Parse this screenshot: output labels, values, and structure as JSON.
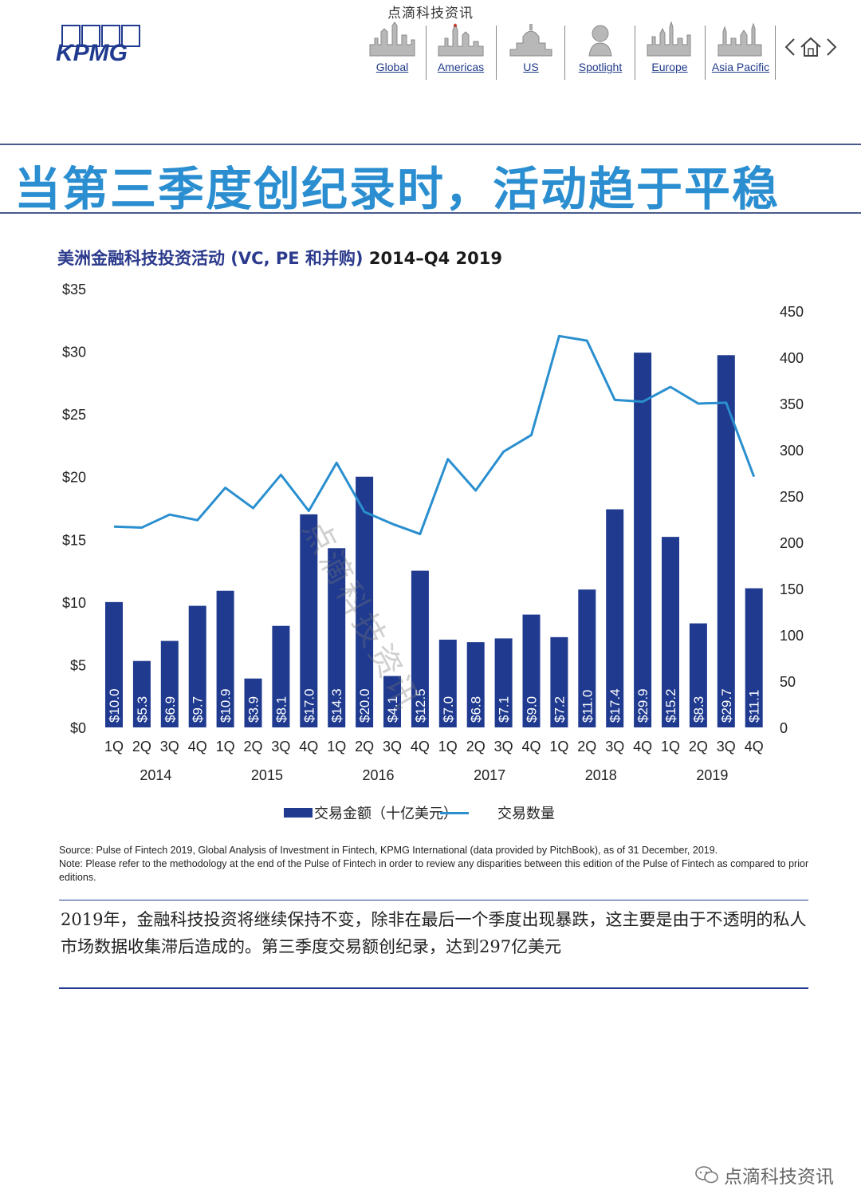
{
  "header": {
    "watermark_top": "点滴科技资讯",
    "logo_text": "KPMG",
    "nav_items": [
      {
        "label": "Global",
        "icon": "global-skyline-icon"
      },
      {
        "label": "Americas",
        "icon": "americas-skyline-icon"
      },
      {
        "label": "US",
        "icon": "us-capitol-icon"
      },
      {
        "label": "Spotlight",
        "icon": "spotlight-bust-icon"
      },
      {
        "label": "Europe",
        "icon": "europe-skyline-icon"
      },
      {
        "label": "Asia Pacific",
        "icon": "asia-pacific-skyline-icon"
      }
    ],
    "nav_controls": [
      "chevron-left-icon",
      "home-icon",
      "chevron-right-icon"
    ]
  },
  "main_title": "当第三季度创纪录时，活动趋于平稳",
  "chart_title_cn": "美洲金融科技投资活动 (VC, PE 和并购)",
  "chart_title_range": "2014–Q4 2019",
  "watermark_diag": "点滴科技资讯",
  "chart_data": {
    "type": "bar",
    "categories": [
      "1Q",
      "2Q",
      "3Q",
      "4Q",
      "1Q",
      "2Q",
      "3Q",
      "4Q",
      "1Q",
      "2Q",
      "3Q",
      "4Q",
      "1Q",
      "2Q",
      "3Q",
      "4Q",
      "1Q",
      "2Q",
      "3Q",
      "4Q",
      "1Q",
      "2Q",
      "3Q",
      "4Q"
    ],
    "years": [
      "2014",
      "2015",
      "2016",
      "2017",
      "2018",
      "2019"
    ],
    "series": [
      {
        "name": "交易金额（十亿美元）",
        "type": "bar",
        "axis": "left",
        "values": [
          10.0,
          5.3,
          6.9,
          9.7,
          10.9,
          3.9,
          8.1,
          17.0,
          14.3,
          20.0,
          4.1,
          12.5,
          7.0,
          6.8,
          7.1,
          9.0,
          7.2,
          11.0,
          17.4,
          29.9,
          15.2,
          8.3,
          29.7,
          11.1
        ],
        "labels": [
          "$10.0",
          "$5.3",
          "$6.9",
          "$9.7",
          "$10.9",
          "$3.9",
          "$8.1",
          "$17.0",
          "$14.3",
          "$20.0",
          "$4.1",
          "$12.5",
          "$7.0",
          "$6.8",
          "$7.1",
          "$9.0",
          "$7.2",
          "$11.0",
          "$17.4",
          "$29.9",
          "$15.2",
          "$8.3",
          "$29.7",
          "$11.1"
        ]
      },
      {
        "name": "交易数量",
        "type": "line",
        "axis": "right",
        "values": [
          217,
          216,
          230,
          224,
          259,
          237,
          273,
          234,
          286,
          233,
          220,
          209,
          290,
          256,
          298,
          316,
          423,
          418,
          354,
          352,
          368,
          350,
          351,
          271
        ]
      }
    ],
    "y_left": {
      "ticks": [
        "$0",
        "$5",
        "$10",
        "$15",
        "$20",
        "$25",
        "$30",
        "$35"
      ],
      "lim": [
        0,
        35
      ]
    },
    "y_right": {
      "ticks": [
        "0",
        "50",
        "100",
        "150",
        "200",
        "250",
        "300",
        "350",
        "400",
        "450"
      ],
      "lim": [
        0,
        450
      ]
    },
    "grid": false,
    "legend_position": "bottom-center",
    "colors": {
      "bar": "#1f3a8f",
      "line": "#2a8fcf",
      "title_blue": "#2b8ed0",
      "rule": "#1f3a8f"
    }
  },
  "source_note": "Source: Pulse of Fintech 2019, Global Analysis of Investment in Fintech, KPMG International (data provided by PitchBook), as of 31 December, 2019.",
  "note": "Note: Please refer to the methodology at the end of the Pulse of Fintech in order to review any disparities between this edition of the Pulse of Fintech as compared to prior editions.",
  "body_text": "2019年，金融科技投资将继续保持不变，除非在最后一个季度出现暴跌，这主要是由于不透明的私人市场数据收集滞后造成的。第三季度交易额创纪录，达到297亿美元",
  "footer_watermark": "点滴科技资讯"
}
